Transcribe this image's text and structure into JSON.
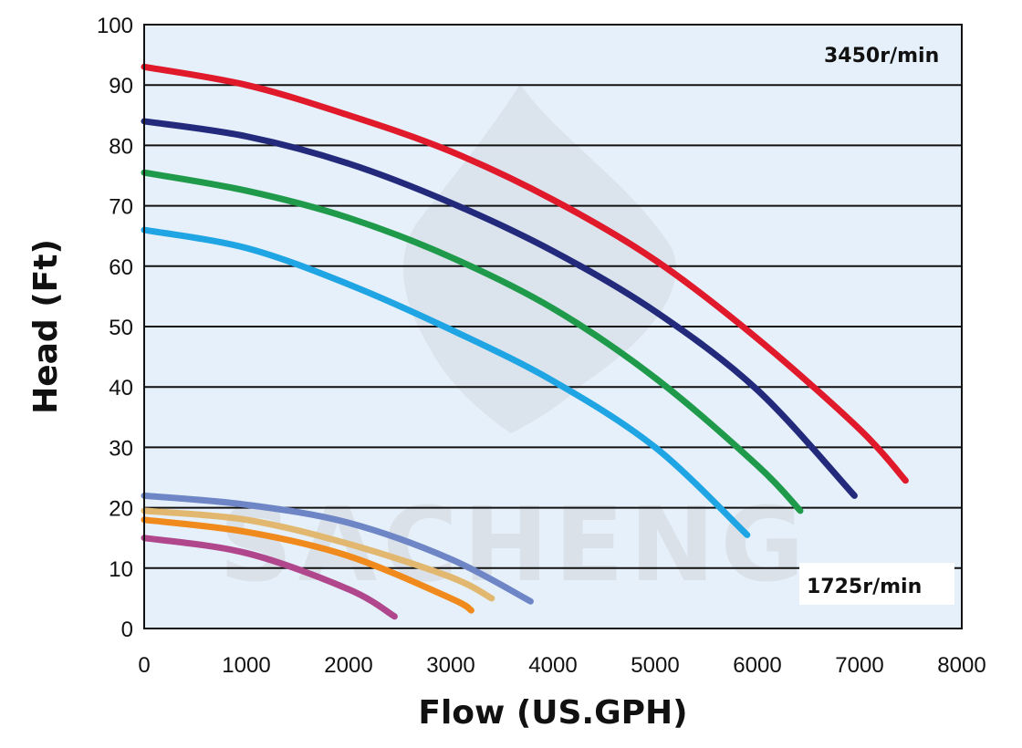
{
  "chart_data": {
    "type": "line",
    "xlabel": "Flow (US.GPH)",
    "ylabel": "Head (Ft)",
    "xlim": [
      0,
      8000
    ],
    "ylim": [
      0,
      100
    ],
    "x_ticks": [
      "0",
      "1000",
      "2000",
      "3000",
      "4000",
      "5000",
      "6000",
      "7000",
      "8000"
    ],
    "y_ticks": [
      "0",
      "10",
      "20",
      "30",
      "40",
      "50",
      "60",
      "70",
      "80",
      "90",
      "100"
    ],
    "grid": "horizontal",
    "background_color": "#e6f0fa",
    "annotations": [
      "3450r/min",
      "1725r/min"
    ],
    "watermark": "SACHENG",
    "series": [
      {
        "color": "#e0192b",
        "points": [
          [
            0,
            93
          ],
          [
            1000,
            90
          ],
          [
            2000,
            85
          ],
          [
            3000,
            79
          ],
          [
            4000,
            71
          ],
          [
            5000,
            61
          ],
          [
            6000,
            48
          ],
          [
            7000,
            33
          ],
          [
            7450,
            24.5
          ]
        ]
      },
      {
        "color": "#232a7c",
        "points": [
          [
            0,
            84
          ],
          [
            1000,
            81.5
          ],
          [
            2000,
            77
          ],
          [
            3000,
            70.5
          ],
          [
            4000,
            62.5
          ],
          [
            5000,
            52.5
          ],
          [
            6000,
            39.5
          ],
          [
            6950,
            22
          ]
        ]
      },
      {
        "color": "#1f9a4a",
        "points": [
          [
            0,
            75.5
          ],
          [
            1000,
            72.5
          ],
          [
            2000,
            68
          ],
          [
            3000,
            61.5
          ],
          [
            4000,
            53
          ],
          [
            5000,
            41.5
          ],
          [
            6000,
            27
          ],
          [
            6420,
            19.5
          ]
        ]
      },
      {
        "color": "#1fa5e3",
        "points": [
          [
            0,
            66
          ],
          [
            1000,
            63
          ],
          [
            2000,
            57
          ],
          [
            3000,
            49.5
          ],
          [
            4000,
            41
          ],
          [
            5000,
            30
          ],
          [
            5900,
            15.5
          ]
        ]
      },
      {
        "color": "#6e86c6",
        "points": [
          [
            0,
            22
          ],
          [
            1000,
            20.5
          ],
          [
            2000,
            17.5
          ],
          [
            3000,
            11.5
          ],
          [
            3780,
            4.5
          ]
        ]
      },
      {
        "color": "#e2b870",
        "points": [
          [
            0,
            19.5
          ],
          [
            1000,
            18
          ],
          [
            2000,
            14
          ],
          [
            3000,
            8.5
          ],
          [
            3400,
            5
          ]
        ]
      },
      {
        "color": "#f08a1c",
        "points": [
          [
            0,
            18
          ],
          [
            1000,
            16
          ],
          [
            2000,
            12
          ],
          [
            3000,
            5
          ],
          [
            3200,
            3
          ]
        ]
      },
      {
        "color": "#b0478c",
        "points": [
          [
            0,
            15
          ],
          [
            1000,
            12.5
          ],
          [
            2000,
            6.5
          ],
          [
            2450,
            2
          ]
        ]
      }
    ]
  }
}
